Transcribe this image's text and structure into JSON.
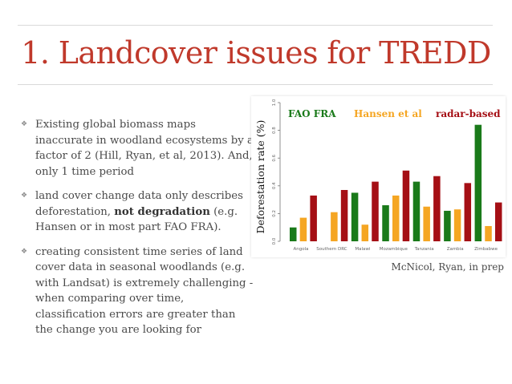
{
  "slide": {
    "title": "1. Landcover issues for TREDD",
    "bullets": [
      {
        "parts": [
          {
            "text": "Existing global biomass maps inaccurate in woodland ecosystems by a factor of 2 (Hill, Ryan, et al, 2013). And, only 1 time period",
            "bold": false
          }
        ]
      },
      {
        "parts": [
          {
            "text": "land cover change data only describes deforestation, ",
            "bold": false
          },
          {
            "text": "not degradation",
            "bold": true
          },
          {
            "text": " (e.g. Hansen or in most part FAO FRA).",
            "bold": false
          }
        ]
      },
      {
        "parts": [
          {
            "text": "creating consistent time series of land cover data in seasonal woodlands (e.g. with Landsat) is extremely challenging - when comparing over time, classification errors are greater than the change you are looking for",
            "bold": false
          }
        ]
      }
    ],
    "bullet_icon": "four-point-star-icon",
    "caption": "McNicol, Ryan, in prep",
    "colors": {
      "title": "#c0392b",
      "text": "#4a4a4a"
    }
  },
  "chart_data": {
    "type": "bar",
    "ylabel": "Deforestation rate (%)",
    "ylim": [
      0,
      1.0
    ],
    "yticks": [
      0.0,
      0.2,
      0.4,
      0.6,
      0.8,
      1.0
    ],
    "categories": [
      "Angola",
      "Southern DRC",
      "Malawi",
      "Mozambique",
      "Tanzania",
      "Zambia",
      "Zimbabwe"
    ],
    "series": [
      {
        "name": "FAO FRA",
        "color": "#1a7a1a",
        "values": [
          0.1,
          0.0,
          0.35,
          0.26,
          0.43,
          0.22,
          0.84
        ]
      },
      {
        "name": "Hansen et al",
        "color": "#f5a623",
        "values": [
          0.17,
          0.21,
          0.12,
          0.33,
          0.25,
          0.23,
          0.11
        ]
      },
      {
        "name": "radar-based",
        "color": "#a50f15",
        "values": [
          0.33,
          0.37,
          0.43,
          0.51,
          0.47,
          0.42,
          0.28
        ]
      }
    ],
    "legend": "top",
    "grid": false
  }
}
